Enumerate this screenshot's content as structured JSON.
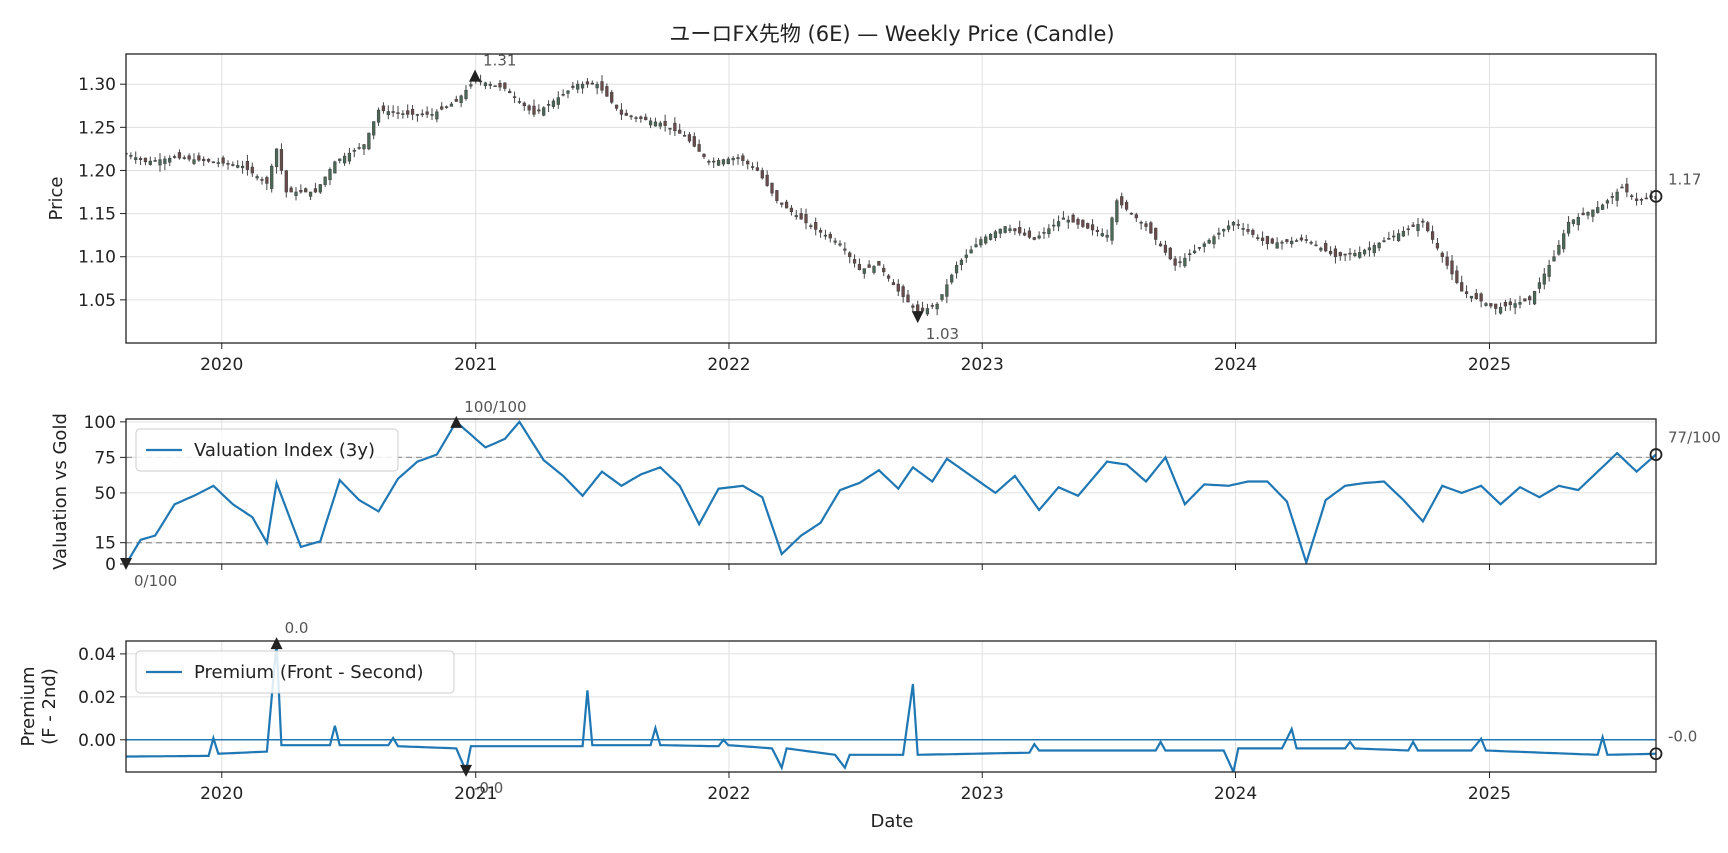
{
  "chart_data": {
    "type": "line",
    "title": "ユーロFX先物 (6E) — Weekly Price (Candle)",
    "xlabel": "Date",
    "x_ticks": [
      "2020",
      "2021",
      "2022",
      "2023",
      "2024",
      "2025"
    ],
    "xlim": [
      "2019-08-16",
      "2025-08-29"
    ],
    "colors": {
      "line": "#1f77b4",
      "candle": "#444444",
      "grid": "#e0e0e0",
      "ref": "#999999",
      "marker": "#222222"
    },
    "panels": [
      {
        "id": "price",
        "type": "candlestick",
        "ylabel": "Price",
        "y_ticks": [
          "1.05",
          "1.10",
          "1.15",
          "1.20",
          "1.25",
          "1.30"
        ],
        "ylim": [
          1.0,
          1.335
        ],
        "grid": true,
        "anchor_points": [
          [
            "2019-08-16",
            1.22
          ],
          [
            "2019-09-13",
            1.21
          ],
          [
            "2019-10-25",
            1.215
          ],
          [
            "2019-12-20",
            1.21
          ],
          [
            "2020-01-31",
            1.205
          ],
          [
            "2020-03-06",
            1.185
          ],
          [
            "2020-03-20",
            1.225
          ],
          [
            "2020-04-03",
            1.175
          ],
          [
            "2020-05-15",
            1.175
          ],
          [
            "2020-06-12",
            1.21
          ],
          [
            "2020-07-24",
            1.23
          ],
          [
            "2020-08-14",
            1.27
          ],
          [
            "2020-09-25",
            1.265
          ],
          [
            "2020-10-30",
            1.265
          ],
          [
            "2020-12-04",
            1.28
          ],
          [
            "2020-12-31",
            1.305
          ],
          [
            "2021-02-12",
            1.295
          ],
          [
            "2021-03-26",
            1.265
          ],
          [
            "2021-05-28",
            1.3
          ],
          [
            "2021-06-25",
            1.3
          ],
          [
            "2021-07-30",
            1.265
          ],
          [
            "2021-09-24",
            1.255
          ],
          [
            "2021-10-29",
            1.24
          ],
          [
            "2021-12-03",
            1.21
          ],
          [
            "2022-01-14",
            1.215
          ],
          [
            "2022-02-11",
            1.2
          ],
          [
            "2022-03-11",
            1.165
          ],
          [
            "2022-04-29",
            1.135
          ],
          [
            "2022-06-10",
            1.115
          ],
          [
            "2022-07-08",
            1.085
          ],
          [
            "2022-08-05",
            1.09
          ],
          [
            "2022-09-02",
            1.06
          ],
          [
            "2022-09-30",
            1.035
          ],
          [
            "2022-10-28",
            1.045
          ],
          [
            "2022-11-25",
            1.09
          ],
          [
            "2022-12-30",
            1.12
          ],
          [
            "2023-02-03",
            1.135
          ],
          [
            "2023-03-17",
            1.12
          ],
          [
            "2023-04-28",
            1.145
          ],
          [
            "2023-05-26",
            1.135
          ],
          [
            "2023-06-30",
            1.125
          ],
          [
            "2023-07-14",
            1.165
          ],
          [
            "2023-08-25",
            1.135
          ],
          [
            "2023-10-06",
            1.09
          ],
          [
            "2023-11-17",
            1.115
          ],
          [
            "2023-12-29",
            1.14
          ],
          [
            "2024-02-16",
            1.115
          ],
          [
            "2024-04-12",
            1.12
          ],
          [
            "2024-05-24",
            1.1
          ],
          [
            "2024-06-28",
            1.105
          ],
          [
            "2024-09-13",
            1.135
          ],
          [
            "2024-09-27",
            1.14
          ],
          [
            "2024-10-25",
            1.1
          ],
          [
            "2024-11-22",
            1.06
          ],
          [
            "2025-01-10",
            1.04
          ],
          [
            "2025-02-28",
            1.05
          ],
          [
            "2025-04-04",
            1.1
          ],
          [
            "2025-04-25",
            1.14
          ],
          [
            "2025-06-13",
            1.16
          ],
          [
            "2025-07-11",
            1.18
          ],
          [
            "2025-08-01",
            1.165
          ],
          [
            "2025-08-29",
            1.17
          ]
        ],
        "annotations": [
          {
            "date": "2020-12-31",
            "value": 1.31,
            "label": "1.31",
            "marker": "max"
          },
          {
            "date": "2022-09-30",
            "value": 1.03,
            "label": "1.03",
            "marker": "min"
          },
          {
            "date": "2025-08-29",
            "value": 1.17,
            "label": "1.17",
            "marker": "last"
          }
        ]
      },
      {
        "id": "valuation",
        "type": "line",
        "ylabel": "Valuation vs Gold",
        "y_ticks": [
          "0",
          "15",
          "50",
          "75",
          "100"
        ],
        "ylim": [
          0,
          102
        ],
        "reference_lines": [
          15,
          75
        ],
        "legend": "Valuation Index (3y)",
        "legend_position": "top-left",
        "grid": true,
        "anchor_points": [
          [
            "2019-08-16",
            0
          ],
          [
            "2019-09-06",
            17
          ],
          [
            "2019-09-27",
            20
          ],
          [
            "2019-10-25",
            42
          ],
          [
            "2019-11-22",
            48
          ],
          [
            "2019-12-20",
            55
          ],
          [
            "2020-01-17",
            42
          ],
          [
            "2020-02-14",
            33
          ],
          [
            "2020-03-06",
            15
          ],
          [
            "2020-03-20",
            57
          ],
          [
            "2020-04-24",
            12
          ],
          [
            "2020-05-22",
            16
          ],
          [
            "2020-06-19",
            59
          ],
          [
            "2020-07-17",
            45
          ],
          [
            "2020-08-14",
            37
          ],
          [
            "2020-09-11",
            60
          ],
          [
            "2020-10-09",
            72
          ],
          [
            "2020-11-06",
            77
          ],
          [
            "2020-12-04",
            100
          ],
          [
            "2021-01-15",
            82
          ],
          [
            "2021-02-12",
            88
          ],
          [
            "2021-03-05",
            100
          ],
          [
            "2021-04-09",
            73
          ],
          [
            "2021-05-07",
            62
          ],
          [
            "2021-06-04",
            48
          ],
          [
            "2021-07-02",
            65
          ],
          [
            "2021-07-30",
            55
          ],
          [
            "2021-08-27",
            63
          ],
          [
            "2021-09-24",
            68
          ],
          [
            "2021-10-22",
            55
          ],
          [
            "2021-11-19",
            28
          ],
          [
            "2021-12-17",
            53
          ],
          [
            "2022-01-21",
            55
          ],
          [
            "2022-02-18",
            47
          ],
          [
            "2022-03-18",
            7
          ],
          [
            "2022-04-15",
            20
          ],
          [
            "2022-05-13",
            29
          ],
          [
            "2022-06-10",
            52
          ],
          [
            "2022-07-08",
            57
          ],
          [
            "2022-08-05",
            66
          ],
          [
            "2022-09-02",
            53
          ],
          [
            "2022-09-23",
            68
          ],
          [
            "2022-10-21",
            58
          ],
          [
            "2022-11-11",
            74
          ],
          [
            "2022-12-16",
            62
          ],
          [
            "2023-01-20",
            50
          ],
          [
            "2023-02-17",
            62
          ],
          [
            "2023-03-24",
            38
          ],
          [
            "2023-04-21",
            54
          ],
          [
            "2023-05-19",
            48
          ],
          [
            "2023-06-30",
            72
          ],
          [
            "2023-07-28",
            70
          ],
          [
            "2023-08-25",
            58
          ],
          [
            "2023-09-22",
            75
          ],
          [
            "2023-10-20",
            42
          ],
          [
            "2023-11-17",
            56
          ],
          [
            "2023-12-22",
            55
          ],
          [
            "2024-01-19",
            58
          ],
          [
            "2024-02-16",
            58
          ],
          [
            "2024-03-15",
            44
          ],
          [
            "2024-04-12",
            1
          ],
          [
            "2024-05-10",
            45
          ],
          [
            "2024-06-07",
            55
          ],
          [
            "2024-07-05",
            57
          ],
          [
            "2024-08-02",
            58
          ],
          [
            "2024-08-30",
            45
          ],
          [
            "2024-09-27",
            30
          ],
          [
            "2024-10-25",
            55
          ],
          [
            "2024-11-22",
            50
          ],
          [
            "2024-12-20",
            55
          ],
          [
            "2025-01-17",
            42
          ],
          [
            "2025-02-14",
            54
          ],
          [
            "2025-03-14",
            47
          ],
          [
            "2025-04-11",
            55
          ],
          [
            "2025-05-09",
            52
          ],
          [
            "2025-06-06",
            65
          ],
          [
            "2025-07-04",
            78
          ],
          [
            "2025-08-01",
            65
          ],
          [
            "2025-08-29",
            77
          ]
        ],
        "annotations": [
          {
            "date": "2020-12-04",
            "value": 100,
            "label": "100/100",
            "marker": "max"
          },
          {
            "date": "2019-08-16",
            "value": 0,
            "label": "0/100",
            "marker": "min"
          },
          {
            "date": "2025-08-29",
            "value": 77,
            "label": "77/100",
            "marker": "last"
          }
        ]
      },
      {
        "id": "premium",
        "type": "line",
        "ylabel": [
          "Premium",
          "(F - 2nd)"
        ],
        "y_ticks": [
          "0.00",
          "0.02",
          "0.04"
        ],
        "ylim": [
          -0.015,
          0.046
        ],
        "reference_lines": [
          0
        ],
        "legend": "Premium (Front - Second)",
        "legend_position": "top-left",
        "grid": true,
        "anchor_points": [
          [
            "2019-08-16",
            -0.0078
          ],
          [
            "2019-12-13",
            -0.0075
          ],
          [
            "2019-12-20",
            0.0008
          ],
          [
            "2019-12-27",
            -0.0065
          ],
          [
            "2020-03-06",
            -0.0055
          ],
          [
            "2020-03-20",
            0.045
          ],
          [
            "2020-03-27",
            -0.0025
          ],
          [
            "2020-06-05",
            -0.0025
          ],
          [
            "2020-06-12",
            0.0065
          ],
          [
            "2020-06-19",
            -0.0025
          ],
          [
            "2020-08-28",
            -0.0025
          ],
          [
            "2020-09-04",
            0.0008
          ],
          [
            "2020-09-11",
            -0.003
          ],
          [
            "2020-12-04",
            -0.004
          ],
          [
            "2020-12-18",
            -0.0145
          ],
          [
            "2020-12-25",
            -0.003
          ],
          [
            "2021-06-04",
            -0.003
          ],
          [
            "2021-06-11",
            0.023
          ],
          [
            "2021-06-18",
            -0.0025
          ],
          [
            "2021-09-10",
            -0.0025
          ],
          [
            "2021-09-17",
            0.0055
          ],
          [
            "2021-09-24",
            -0.0025
          ],
          [
            "2021-12-17",
            -0.003
          ],
          [
            "2021-12-24",
            0.0
          ],
          [
            "2021-12-31",
            -0.0025
          ],
          [
            "2022-03-04",
            -0.004
          ],
          [
            "2022-03-18",
            -0.013
          ],
          [
            "2022-03-25",
            -0.004
          ],
          [
            "2022-06-03",
            -0.007
          ],
          [
            "2022-06-17",
            -0.013
          ],
          [
            "2022-06-24",
            -0.007
          ],
          [
            "2022-09-09",
            -0.007
          ],
          [
            "2022-09-23",
            0.026
          ],
          [
            "2022-09-30",
            -0.007
          ],
          [
            "2023-03-10",
            -0.006
          ],
          [
            "2023-03-17",
            -0.002
          ],
          [
            "2023-03-24",
            -0.005
          ],
          [
            "2023-09-08",
            -0.005
          ],
          [
            "2023-09-15",
            -0.001
          ],
          [
            "2023-09-22",
            -0.005
          ],
          [
            "2023-12-15",
            -0.005
          ],
          [
            "2023-12-29",
            -0.015
          ],
          [
            "2024-01-05",
            -0.004
          ],
          [
            "2024-03-08",
            -0.004
          ],
          [
            "2024-03-22",
            0.005
          ],
          [
            "2024-03-29",
            -0.004
          ],
          [
            "2024-06-07",
            -0.004
          ],
          [
            "2024-06-14",
            -0.001
          ],
          [
            "2024-06-21",
            -0.004
          ],
          [
            "2024-09-06",
            -0.005
          ],
          [
            "2024-09-13",
            -0.001
          ],
          [
            "2024-09-20",
            -0.005
          ],
          [
            "2024-12-06",
            -0.005
          ],
          [
            "2024-12-20",
            0.0005
          ],
          [
            "2024-12-27",
            -0.005
          ],
          [
            "2025-06-06",
            -0.007
          ],
          [
            "2025-06-13",
            0.0012
          ],
          [
            "2025-06-20",
            -0.007
          ],
          [
            "2025-08-29",
            -0.0065
          ]
        ],
        "annotations": [
          {
            "date": "2020-03-20",
            "value": 0.045,
            "label": "0.0",
            "marker": "max"
          },
          {
            "date": "2020-12-18",
            "value": -0.0145,
            "label": "-0.0",
            "marker": "min"
          },
          {
            "date": "2025-08-29",
            "value": -0.0065,
            "label": "-0.0",
            "marker": "last"
          }
        ]
      }
    ]
  }
}
